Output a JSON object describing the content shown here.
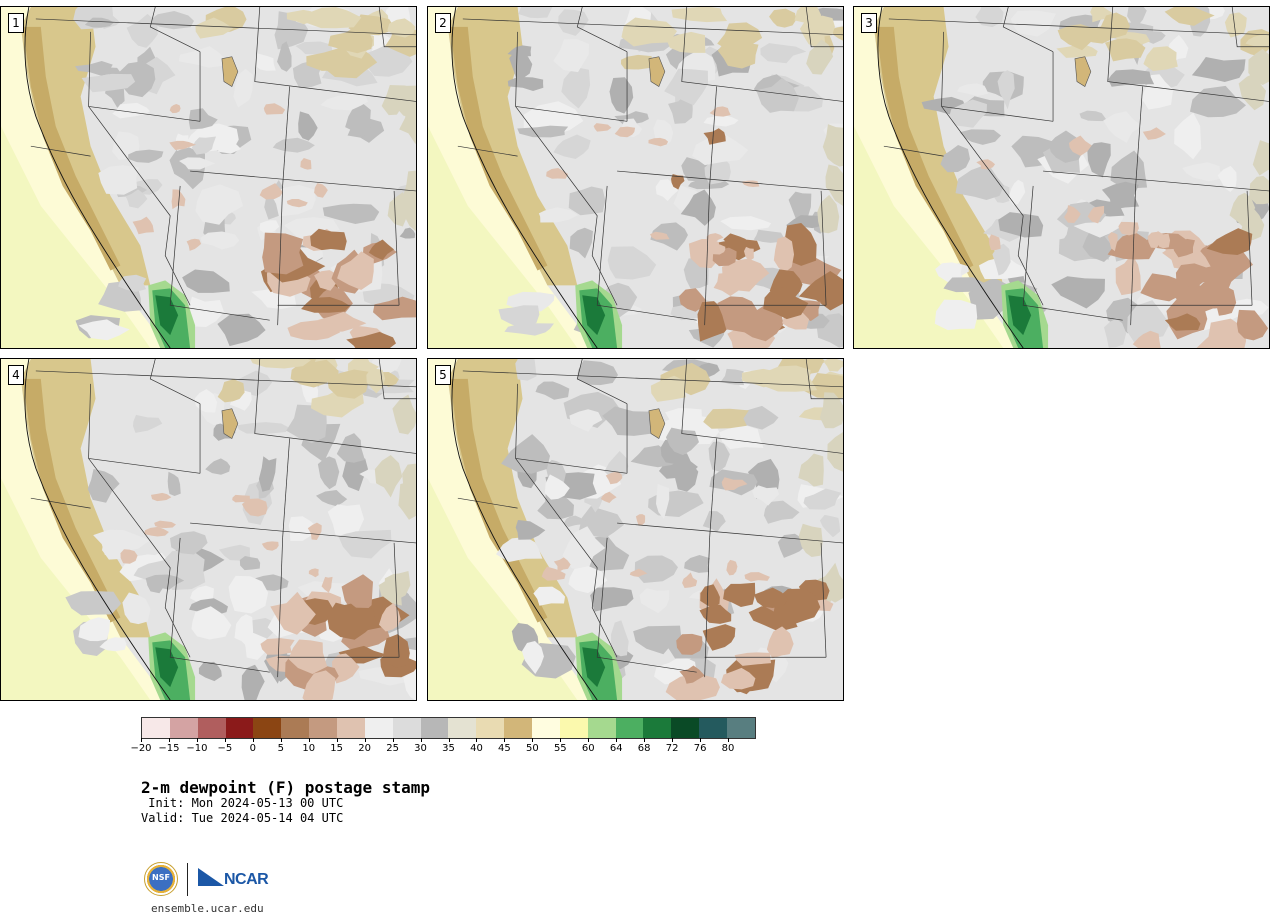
{
  "panels": [
    {
      "label": "1",
      "variant": 1
    },
    {
      "label": "2",
      "variant": 2
    },
    {
      "label": "3",
      "variant": 3
    },
    {
      "label": "4",
      "variant": 4
    },
    {
      "label": "5",
      "variant": 5
    }
  ],
  "colorbar": {
    "colors": [
      "#f7e8e8",
      "#d4a3a3",
      "#b05e5e",
      "#8b1a1a",
      "#8b4513",
      "#ab7b55",
      "#c49a80",
      "#dfc2b0",
      "#efefef",
      "#dcdcdc",
      "#b7b7b7",
      "#e4e2d2",
      "#e9dbb2",
      "#d2b679",
      "#fffde0",
      "#fbf9ad",
      "#a5d98f",
      "#4caf61",
      "#1b7a3a",
      "#0a4a26",
      "#245a5e",
      "#587e80"
    ],
    "labels": [
      "−20",
      "−15",
      "−10",
      "−5",
      "0",
      "5",
      "10",
      "15",
      "20",
      "25",
      "30",
      "35",
      "40",
      "45",
      "50",
      "55",
      "60",
      "64",
      "68",
      "72",
      "76",
      "80"
    ]
  },
  "title": "2-m dewpoint (F) postage stamp",
  "init": " Init: Mon 2024-05-13 00 UTC",
  "valid": "Valid: Tue 2024-05-14 04 UTC",
  "logo": {
    "nsf": "NSF",
    "ncar": "NCAR"
  },
  "url": "ensemble.ucar.edu"
}
